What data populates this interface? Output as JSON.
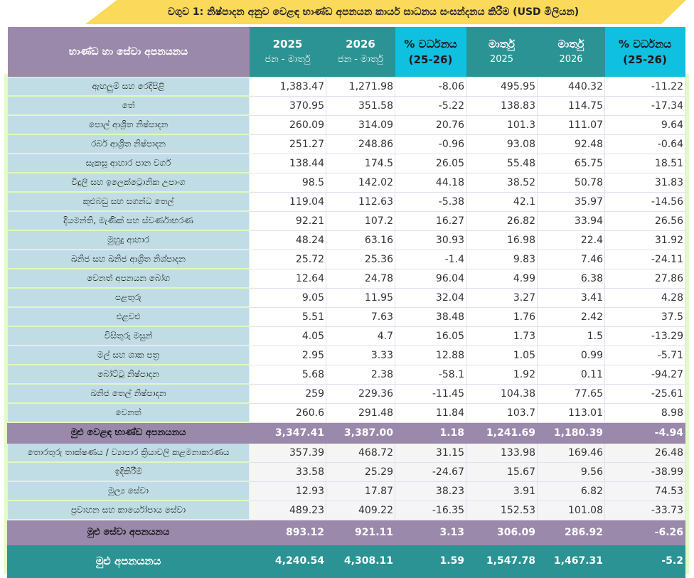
{
  "title": "වගුව 1: නිෂ්පාදන අනුව වෙළඳ භාණ්ඩ අපනයන කාර්ය සාධනය සංසන්දනය කිරීම (USD මිලියන)",
  "headers": {
    "label": "භාණ්ඩ හා සේවා අපනයනය",
    "c1": {
      "top": "2025",
      "sub": "ජන - මාර්තු"
    },
    "c2": {
      "top": "2026",
      "sub": "ජන - මාර්තු"
    },
    "c3": {
      "top": "% වර්ධනය",
      "sub": "(25-26)"
    },
    "c4": {
      "top": "මාර්තු",
      "sub": "2025"
    },
    "c5": {
      "top": "මාර්තු",
      "sub": "2026"
    },
    "c6": {
      "top": "% වර්ධනය",
      "sub": "(25-26)"
    }
  },
  "goods": [
    [
      "ඇඟලුම් සහ රෙදිපිළි",
      "1,383.47",
      "1,271.98",
      "-8.06",
      "495.95",
      "440.32",
      "-11.22"
    ],
    [
      "තේ",
      "370.95",
      "351.58",
      "-5.22",
      "138.83",
      "114.75",
      "-17.34"
    ],
    [
      "පොල් ආශ්‍රිත නිෂ්පාදන",
      "260.09",
      "314.09",
      "20.76",
      "101.3",
      "111.07",
      "9.64"
    ],
    [
      "රබර් ආශ්‍රිත නිෂ්පාදන",
      "251.27",
      "248.86",
      "-0.96",
      "93.08",
      "92.48",
      "-0.64"
    ],
    [
      "සැකසූ ආහාර පාන වර්ග",
      "138.44",
      "174.5",
      "26.05",
      "55.48",
      "65.75",
      "18.51"
    ],
    [
      "විදුලි සහ ඉලෙක්ට්‍රොනික උපාංග",
      "98.5",
      "142.02",
      "44.18",
      "38.52",
      "50.78",
      "31.83"
    ],
    [
      "කුළුබඩු සහ සගන්ධ තෙල්",
      "119.04",
      "112.63",
      "-5.38",
      "42.1",
      "35.97",
      "-14.56"
    ],
    [
      "දියමන්ති, මැණික් සහ ස්වර්ණාභරණ",
      "92.21",
      "107.2",
      "16.27",
      "26.82",
      "33.94",
      "26.56"
    ],
    [
      "මුහුදු ආහාර",
      "48.24",
      "63.16",
      "30.93",
      "16.98",
      "22.4",
      "31.92"
    ],
    [
      "ඛනිජ සහ ඛනිජ ආශ්‍රිත නිශ්පාදන",
      "25.72",
      "25.36",
      "-1.4",
      "9.83",
      "7.46",
      "-24.11"
    ],
    [
      "වෙනත් අපනයන බෝග",
      "12.64",
      "24.78",
      "96.04",
      "4.99",
      "6.38",
      "27.86"
    ],
    [
      "පළතුරු",
      "9.05",
      "11.95",
      "32.04",
      "3.27",
      "3.41",
      "4.28"
    ],
    [
      "එළවළු",
      "5.51",
      "7.63",
      "38.48",
      "1.76",
      "2.42",
      "37.5"
    ],
    [
      "විසිතුරු මසුන්",
      "4.05",
      "4.7",
      "16.05",
      "1.73",
      "1.5",
      "-13.29"
    ],
    [
      "මල් සහ ශාක පත්‍ර",
      "2.95",
      "3.33",
      "12.88",
      "1.05",
      "0.99",
      "-5.71"
    ],
    [
      "බෝට්ටු නිෂ්පාදන",
      "5.68",
      "2.38",
      "-58.1",
      "1.92",
      "0.11",
      "-94.27"
    ],
    [
      "ඛනිජ තෙල් නිෂ්පාදන",
      "259",
      "229.36",
      "-11.45",
      "104.38",
      "77.65",
      "-25.61"
    ],
    [
      "වෙනත්",
      "260.6",
      "291.48",
      "11.84",
      "103.7",
      "113.01",
      "8.98"
    ]
  ],
  "goods_total": [
    "මුළු වෙළඳ භාණ්ඩ අපනයනය",
    "3,347.41",
    "3,387.00",
    "1.18",
    "1,241.69",
    "1,180.39",
    "-4.94"
  ],
  "services": [
    [
      "තොරතුරු තාක්ෂණය / ව්‍යාපාර ක්‍රියාවලි කළමනාකරණය",
      "357.39",
      "468.72",
      "31.15",
      "133.98",
      "169.46",
      "26.48"
    ],
    [
      "ඉදිකිරීම්",
      "33.58",
      "25.29",
      "-24.67",
      "15.67",
      "9.56",
      "-38.99"
    ],
    [
      "මූල්‍ය සේවා",
      "12.93",
      "17.87",
      "38.23",
      "3.91",
      "6.82",
      "74.53"
    ],
    [
      "ප්‍රවාහන සහ කාර්යෝපාය සේවා",
      "489.23",
      "409.22",
      "-16.35",
      "152.53",
      "101.08",
      "-33.73"
    ]
  ],
  "services_total": [
    "මුළු සේවා අපනයනය",
    "893.12",
    "921.11",
    "3.13",
    "306.09",
    "286.92",
    "-6.26"
  ],
  "grand_total": [
    "මුළු අපනයනය",
    "4,240.54",
    "4,308.11",
    "1.59",
    "1,547.78",
    "1,467.31",
    "-5.2"
  ]
}
